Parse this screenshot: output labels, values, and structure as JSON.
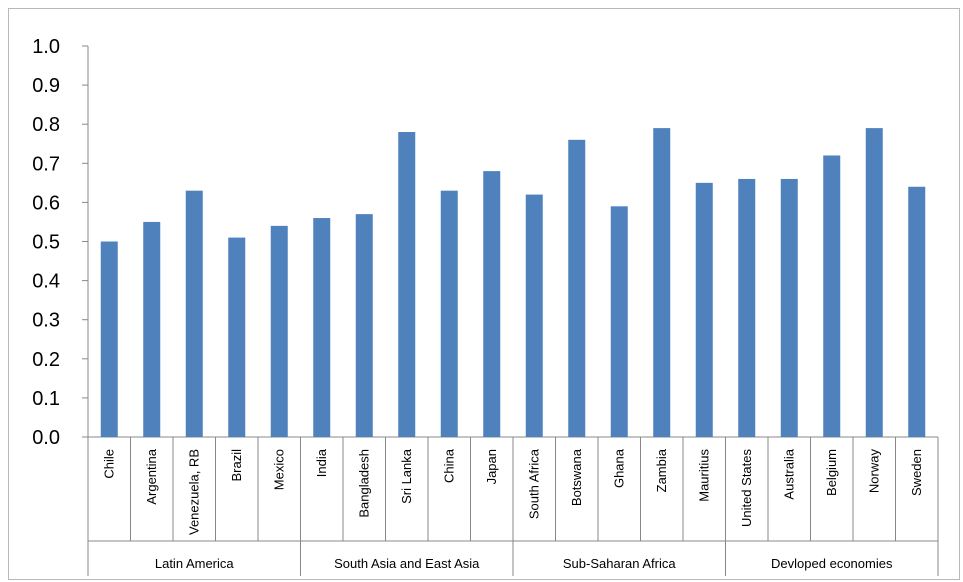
{
  "chart_data": {
    "type": "bar",
    "categories": [
      "Chile",
      "Argentina",
      "Venezuela, RB",
      "Brazil",
      "Mexico",
      "India",
      "Bangladesh",
      "Sri Lanka",
      "China",
      "Japan",
      "South Africa",
      "Botswana",
      "Ghana",
      "Zambia",
      "Mauritius",
      "United States",
      "Australia",
      "Belgium",
      "Norway",
      "Sweden"
    ],
    "values": [
      0.5,
      0.55,
      0.63,
      0.51,
      0.54,
      0.56,
      0.57,
      0.78,
      0.63,
      0.68,
      0.62,
      0.76,
      0.59,
      0.79,
      0.65,
      0.66,
      0.66,
      0.72,
      0.79,
      0.64
    ],
    "groups": [
      {
        "label": "Latin America",
        "start": 0,
        "end": 4
      },
      {
        "label": "South Asia and East Asia",
        "start": 5,
        "end": 9
      },
      {
        "label": "Sub-Saharan Africa",
        "start": 10,
        "end": 14
      },
      {
        "label": "Devloped economies",
        "start": 15,
        "end": 19
      }
    ],
    "yticks": [
      "0.0",
      "0.1",
      "0.2",
      "0.3",
      "0.4",
      "0.5",
      "0.6",
      "0.7",
      "0.8",
      "0.9",
      "1.0"
    ],
    "ylim": [
      0,
      1.0
    ],
    "grid": false,
    "legend": "none",
    "bar_color": "#4f81bd",
    "axis_color": "#888888"
  }
}
